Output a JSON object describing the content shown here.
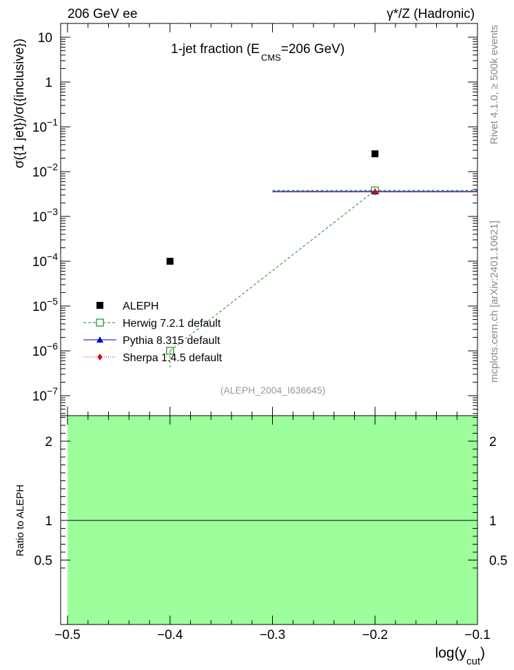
{
  "header": {
    "left": "206 GeV ee",
    "right": "γ*/Z (Hadronic)"
  },
  "side": {
    "top": "Rivet 4.1.0, ≥ 500k events",
    "bottom": "mcplots.cern.ch [arXiv:2401.10621]"
  },
  "chart_data": {
    "type": "scatter",
    "title_main": "1-jet fraction (E",
    "title_sub": "CMS",
    "title_tail": "=206 GeV)",
    "watermark": "(ALEPH_2004_I636645)",
    "ylabel": "σ({1 jet})/σ({inclusive})",
    "xlabel_main": "log(y",
    "xlabel_sub": "cut",
    "xlabel_tail": ")",
    "ratio_ylabel": "Ratio to ALEPH",
    "xlim": [
      -0.5,
      -0.1
    ],
    "ylim": [
      3e-08,
      20
    ],
    "yscale": "log",
    "ratio_ylim": [
      0.35,
      2.35
    ],
    "x_ticks": [
      {
        "v": -0.5,
        "label": "−0.5"
      },
      {
        "v": -0.4,
        "label": "−0.4"
      },
      {
        "v": -0.3,
        "label": "−0.3"
      },
      {
        "v": -0.2,
        "label": "−0.2"
      },
      {
        "v": -0.1,
        "label": "−0.1"
      }
    ],
    "y_ticks": [
      {
        "v": 1e-07,
        "base": "10",
        "exp": "−7"
      },
      {
        "v": 1e-06,
        "base": "10",
        "exp": "−6"
      },
      {
        "v": 1e-05,
        "base": "10",
        "exp": "−5"
      },
      {
        "v": 0.0001,
        "base": "10",
        "exp": "−4"
      },
      {
        "v": 0.001,
        "base": "10",
        "exp": "−3"
      },
      {
        "v": 0.01,
        "base": "10",
        "exp": "−2"
      },
      {
        "v": 0.1,
        "base": "10",
        "exp": "−1"
      },
      {
        "v": 1,
        "base": "1",
        "exp": ""
      },
      {
        "v": 10,
        "base": "10",
        "exp": ""
      }
    ],
    "ratio_ticks": [
      {
        "v": 0.5,
        "label": "0.5"
      },
      {
        "v": 1,
        "label": "1"
      },
      {
        "v": 2,
        "label": "2"
      }
    ],
    "data_series": {
      "name": "ALEPH",
      "color": "#000000",
      "points": [
        {
          "x": -0.4,
          "y": 0.0001
        },
        {
          "x": -0.2,
          "y": 0.025
        }
      ]
    },
    "mc_series": [
      {
        "name": "Herwig 7.2.1 default",
        "color": "#1a8a1a",
        "dash": "4,3",
        "marker": "open-square",
        "points": [
          {
            "x": -0.4,
            "y": 1e-06
          },
          {
            "x": -0.2,
            "y": 0.0038
          }
        ]
      },
      {
        "name": "Pythia 8.315 default",
        "color": "#0000cc",
        "dash": "",
        "marker": "triangle",
        "points": [
          {
            "x": -0.2,
            "y": 0.0036
          }
        ]
      },
      {
        "name": "Sherpa 1.4.5 default",
        "color": "#dd0000",
        "dash": "1,2",
        "marker": "diamond",
        "points": [
          {
            "x": -0.2,
            "y": 0.0035
          }
        ]
      }
    ],
    "ratio_band": {
      "color": "#9cff9c",
      "low": 0.35,
      "high": 2.35
    },
    "ratio_reference": 1
  }
}
